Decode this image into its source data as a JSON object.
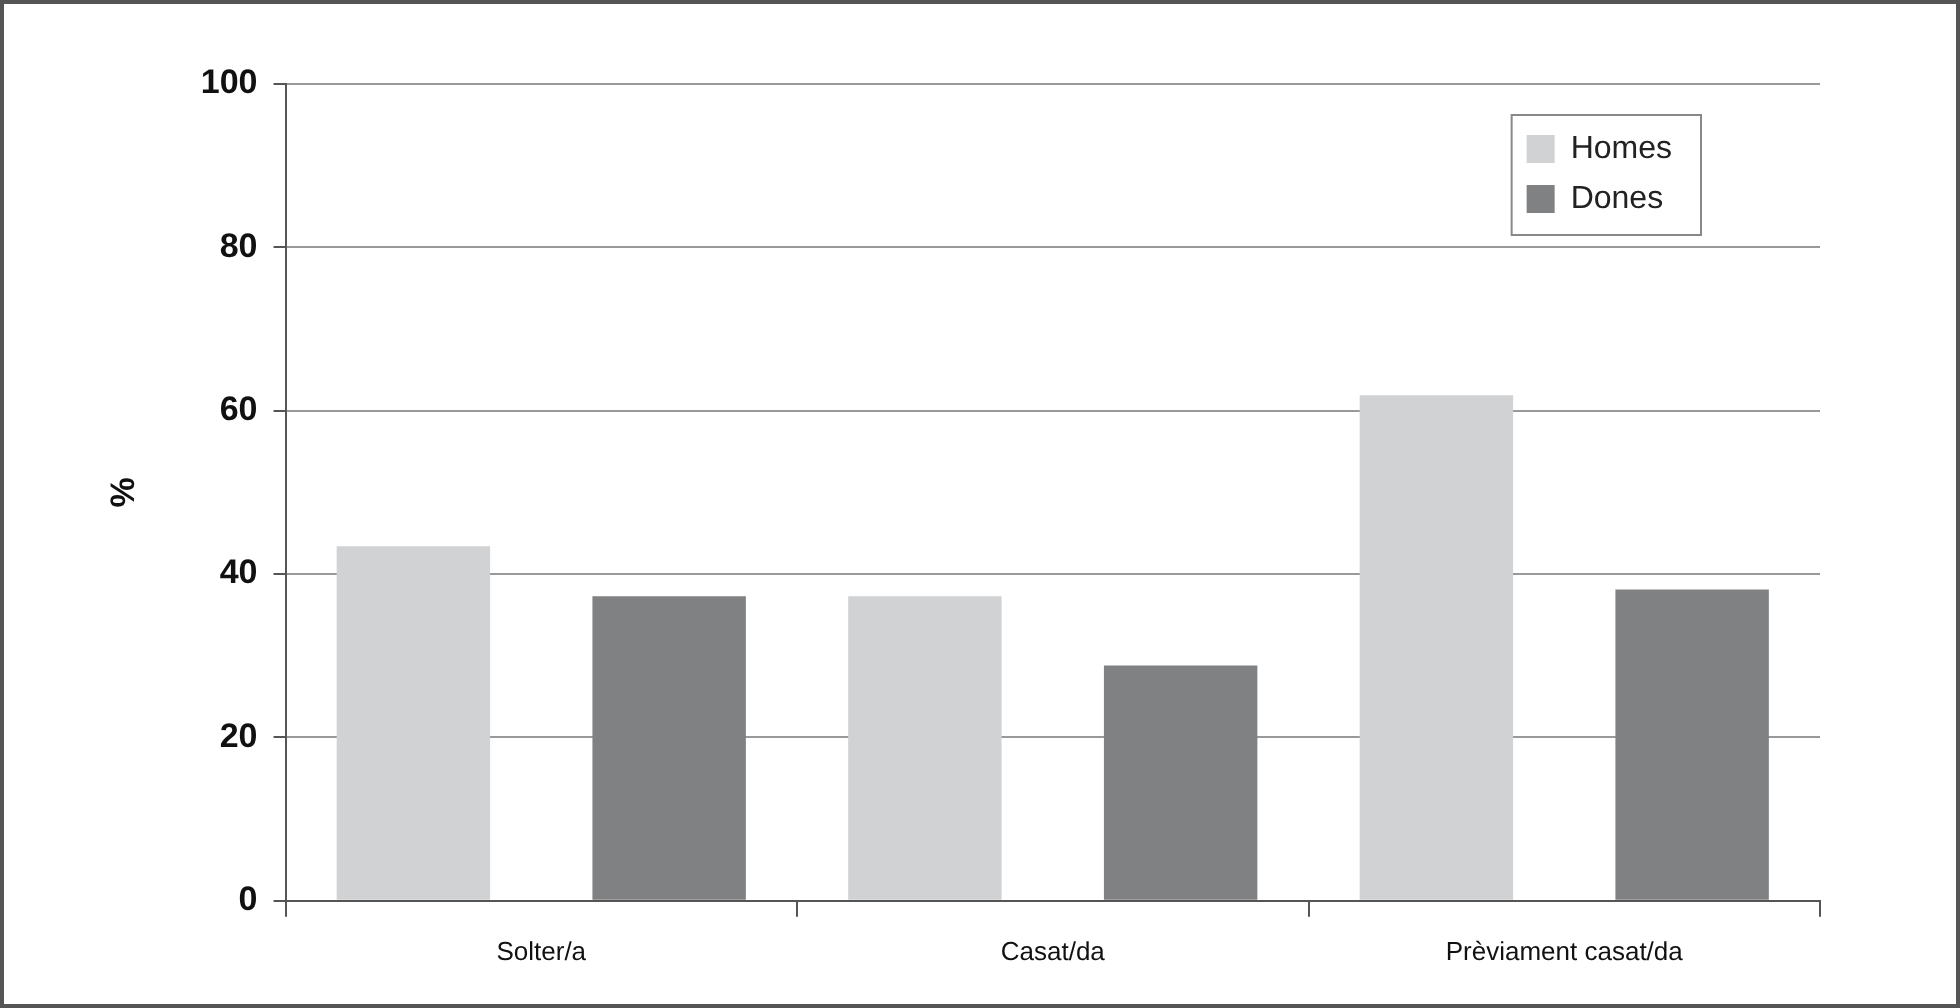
{
  "chart_data": {
    "type": "bar",
    "ylabel": "%",
    "categories": [
      "Solter/a",
      "Casat/da",
      "Prèviament casat/da"
    ],
    "series": [
      {
        "name": "Homes",
        "color": "#d1d2d4",
        "values": [
          43.4,
          37.3,
          61.9
        ]
      },
      {
        "name": "Dones",
        "color": "#808183",
        "values": [
          37.3,
          28.8,
          38.1
        ]
      }
    ],
    "ylim": [
      0,
      100
    ],
    "yticks": [
      0,
      20,
      40,
      60,
      80,
      100
    ],
    "grid": "y",
    "legend": "top right"
  }
}
